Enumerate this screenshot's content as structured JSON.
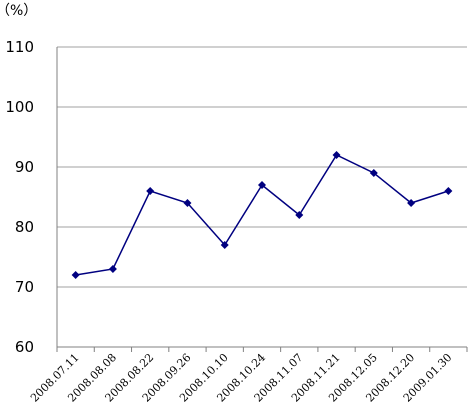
{
  "chart_data": {
    "type": "line",
    "title": "",
    "xlabel": "",
    "ylabel": "（%）",
    "ylim": [
      60,
      110
    ],
    "yticks": [
      "60",
      "70",
      "80",
      "90",
      "100",
      "110"
    ],
    "grid": "horizontal",
    "legend": "none",
    "categories": [
      "2008.07.11",
      "2008.08.08",
      "2008.08.22",
      "2008.09.26",
      "2008.10.10",
      "2008.10.24",
      "2008.11.07",
      "2008.11.21",
      "2008.12.05",
      "2008.12.20",
      "2009.01.30"
    ],
    "series": [
      {
        "values": [
          72,
          73,
          86,
          84,
          77,
          87,
          82,
          92,
          89,
          84,
          86
        ],
        "color": "#000080"
      }
    ]
  }
}
